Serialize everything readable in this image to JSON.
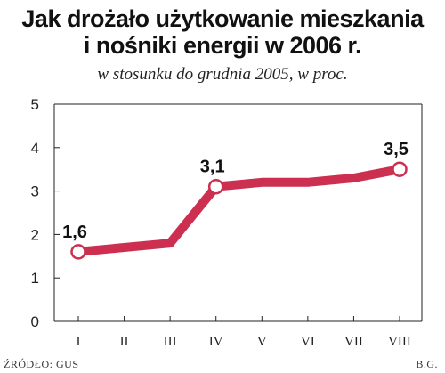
{
  "chart_data": {
    "type": "line",
    "title_lines": [
      "Jak drożało użytkowanie mieszkania",
      "i nośniki energii w 2006 r."
    ],
    "subtitle": "w stosunku do grudnia 2005, w proc.",
    "categories": [
      "I",
      "II",
      "III",
      "IV",
      "V",
      "VI",
      "VII",
      "VIII"
    ],
    "values": [
      1.6,
      1.7,
      1.8,
      3.1,
      3.2,
      3.2,
      3.3,
      3.5
    ],
    "data_labels": [
      {
        "index": 0,
        "text": "1,6"
      },
      {
        "index": 3,
        "text": "3,1"
      },
      {
        "index": 7,
        "text": "3,5"
      }
    ],
    "yticks": [
      "0",
      "1",
      "2",
      "3",
      "4",
      "5"
    ],
    "ylim": [
      0,
      5
    ],
    "grid": false,
    "line_color": "#cc2f50",
    "axis_color": "#222222"
  },
  "footer": {
    "source": "ŹRÓDŁO: GUS",
    "author": "B.G."
  }
}
